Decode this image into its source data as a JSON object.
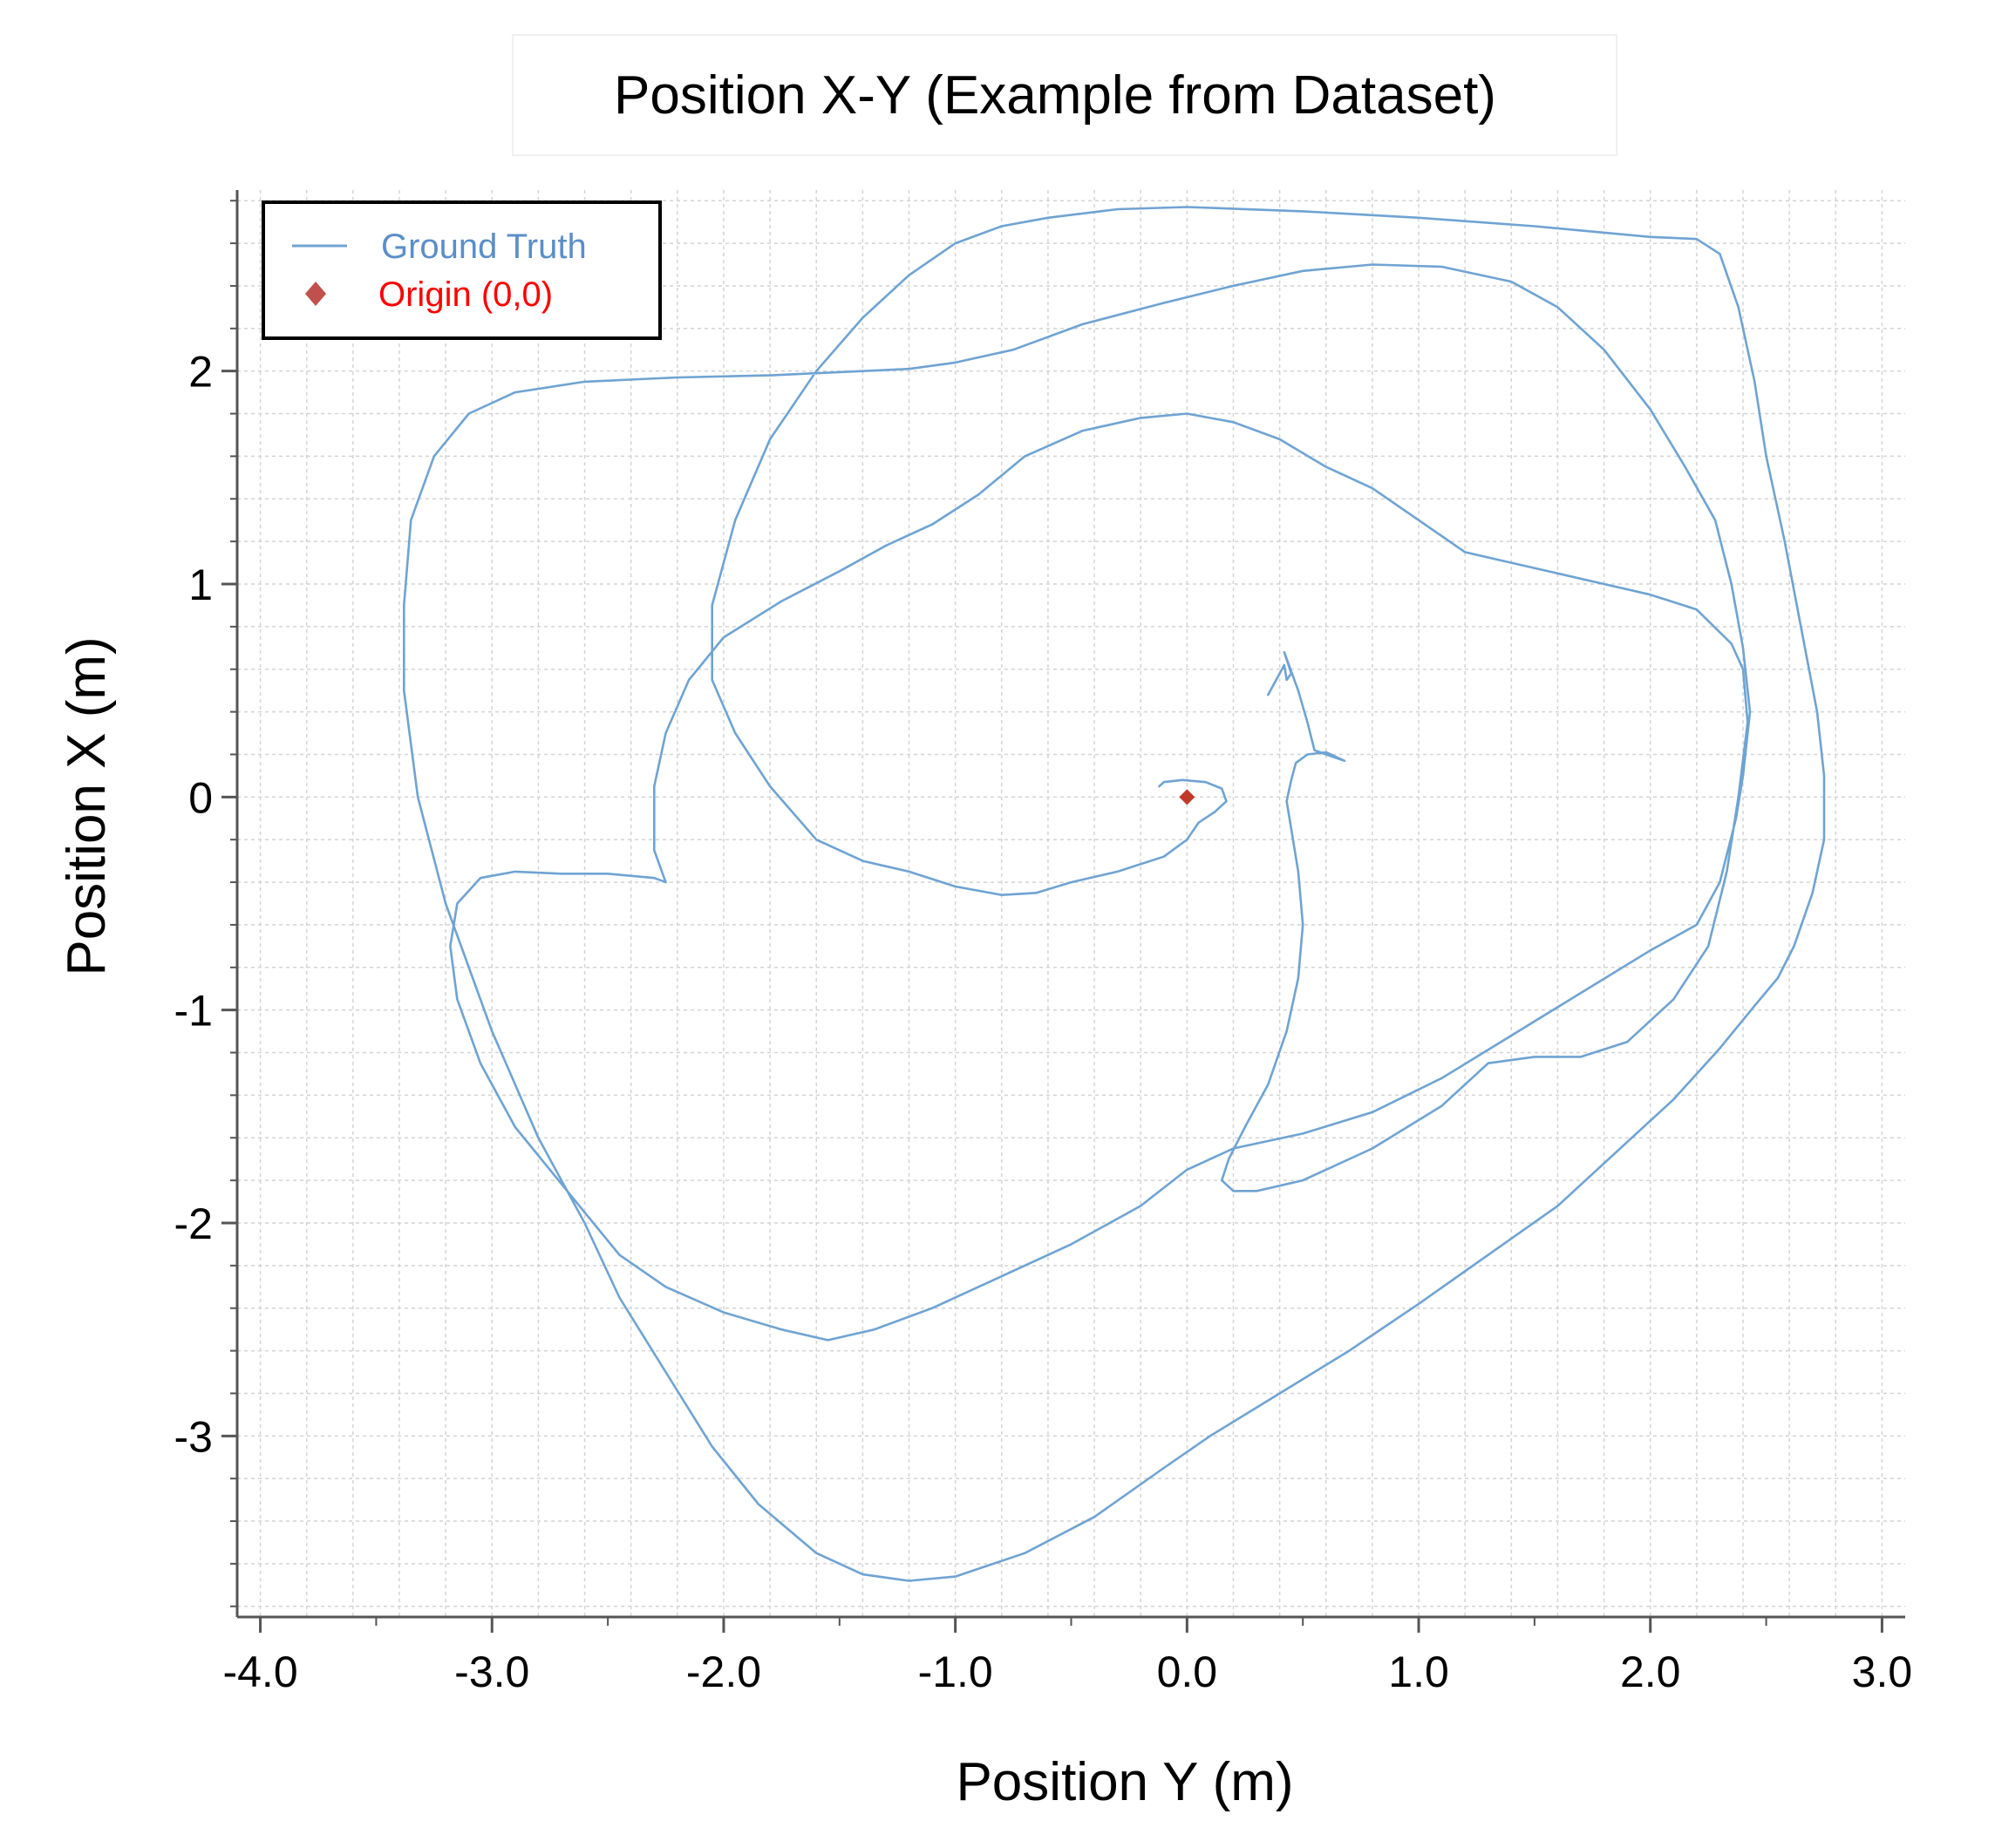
{
  "chart_data": {
    "type": "line",
    "title": "Position X-Y (Example from Dataset)",
    "xlabel": "Position Y (m)",
    "ylabel": "Position X (m)",
    "xlim": [
      -4.1,
      3.1
    ],
    "ylim": [
      -3.85,
      2.85
    ],
    "x_ticks": [
      -4.0,
      -3.0,
      -2.0,
      -1.0,
      0.0,
      1.0,
      2.0,
      3.0
    ],
    "x_tick_labels": [
      "-4.0",
      "-3.0",
      "-2.0",
      "-1.0",
      "0.0",
      "1.0",
      "2.0",
      "3.0"
    ],
    "y_ticks": [
      -3,
      -2,
      -1,
      0,
      1,
      2
    ],
    "y_tick_labels": [
      "-3",
      "-2",
      "-1",
      "0",
      "1",
      "2"
    ],
    "grid": true,
    "legend_position": "top-left",
    "colors": {
      "ground_truth": "#6fa3d2",
      "origin_marker": "#c0392b",
      "legend_ground_truth_text": "#5b8ec9",
      "legend_origin_text": "#ff0000",
      "legend_origin_marker": "#c0504d"
    },
    "series": [
      {
        "name": "Ground Truth",
        "points": [
          [
            0.35,
            0.48
          ],
          [
            0.4,
            0.58
          ],
          [
            0.42,
            0.62
          ],
          [
            0.43,
            0.55
          ],
          [
            0.45,
            0.58
          ],
          [
            0.42,
            0.68
          ],
          [
            0.48,
            0.5
          ],
          [
            0.52,
            0.35
          ],
          [
            0.55,
            0.22
          ],
          [
            0.6,
            0.2
          ],
          [
            0.68,
            0.17
          ],
          [
            0.6,
            0.21
          ],
          [
            0.52,
            0.2
          ],
          [
            0.47,
            0.16
          ],
          [
            0.45,
            0.08
          ],
          [
            0.43,
            -0.02
          ],
          [
            0.45,
            -0.15
          ],
          [
            0.48,
            -0.35
          ],
          [
            0.5,
            -0.6
          ],
          [
            0.48,
            -0.85
          ],
          [
            0.43,
            -1.1
          ],
          [
            0.35,
            -1.35
          ],
          [
            0.25,
            -1.55
          ],
          [
            0.18,
            -1.7
          ],
          [
            0.15,
            -1.8
          ],
          [
            0.2,
            -1.85
          ],
          [
            0.3,
            -1.85
          ],
          [
            0.5,
            -1.8
          ],
          [
            0.8,
            -1.65
          ],
          [
            1.1,
            -1.45
          ],
          [
            1.3,
            -1.25
          ],
          [
            1.5,
            -1.22
          ],
          [
            1.7,
            -1.22
          ],
          [
            1.9,
            -1.15
          ],
          [
            2.1,
            -0.95
          ],
          [
            2.25,
            -0.7
          ],
          [
            2.33,
            -0.35
          ],
          [
            2.38,
            0
          ],
          [
            2.42,
            0.35
          ],
          [
            2.4,
            0.6
          ],
          [
            2.35,
            0.72
          ],
          [
            2.2,
            0.88
          ],
          [
            2.0,
            0.95
          ],
          [
            1.8,
            1.0
          ],
          [
            1.6,
            1.05
          ],
          [
            1.4,
            1.1
          ],
          [
            1.2,
            1.15
          ],
          [
            1.0,
            1.3
          ],
          [
            0.8,
            1.45
          ],
          [
            0.6,
            1.55
          ],
          [
            0.4,
            1.68
          ],
          [
            0.2,
            1.76
          ],
          [
            0.0,
            1.8
          ],
          [
            -0.2,
            1.78
          ],
          [
            -0.45,
            1.72
          ],
          [
            -0.7,
            1.6
          ],
          [
            -0.9,
            1.42
          ],
          [
            -1.1,
            1.28
          ],
          [
            -1.3,
            1.18
          ],
          [
            -1.5,
            1.06
          ],
          [
            -1.75,
            0.92
          ],
          [
            -2.0,
            0.75
          ],
          [
            -2.15,
            0.55
          ],
          [
            -2.25,
            0.3
          ],
          [
            -2.3,
            0.05
          ],
          [
            -2.3,
            -0.25
          ],
          [
            -2.25,
            -0.4
          ],
          [
            -2.3,
            -0.38
          ],
          [
            -2.5,
            -0.36
          ],
          [
            -2.7,
            -0.36
          ],
          [
            -2.9,
            -0.35
          ],
          [
            -3.05,
            -0.38
          ],
          [
            -3.15,
            -0.5
          ],
          [
            -3.18,
            -0.7
          ],
          [
            -3.15,
            -0.95
          ],
          [
            -3.05,
            -1.25
          ],
          [
            -2.9,
            -1.55
          ],
          [
            -2.75,
            -1.75
          ],
          [
            -2.6,
            -1.95
          ],
          [
            -2.45,
            -2.15
          ],
          [
            -2.25,
            -2.3
          ],
          [
            -2.0,
            -2.42
          ],
          [
            -1.75,
            -2.5
          ],
          [
            -1.55,
            -2.55
          ],
          [
            -1.35,
            -2.5
          ],
          [
            -1.1,
            -2.4
          ],
          [
            -0.8,
            -2.25
          ],
          [
            -0.5,
            -2.1
          ],
          [
            -0.2,
            -1.92
          ],
          [
            0.0,
            -1.75
          ],
          [
            0.2,
            -1.65
          ],
          [
            0.5,
            -1.58
          ],
          [
            0.8,
            -1.48
          ],
          [
            1.1,
            -1.32
          ],
          [
            1.4,
            -1.12
          ],
          [
            1.7,
            -0.92
          ],
          [
            2.0,
            -0.72
          ],
          [
            2.2,
            -0.6
          ],
          [
            2.3,
            -0.4
          ],
          [
            2.37,
            -0.1
          ],
          [
            2.4,
            0.1
          ],
          [
            2.43,
            0.4
          ],
          [
            2.4,
            0.7
          ],
          [
            2.35,
            1.0
          ],
          [
            2.28,
            1.3
          ],
          [
            2.15,
            1.55
          ],
          [
            2.0,
            1.82
          ],
          [
            1.8,
            2.1
          ],
          [
            1.6,
            2.3
          ],
          [
            1.4,
            2.42
          ],
          [
            1.1,
            2.49
          ],
          [
            0.8,
            2.5
          ],
          [
            0.5,
            2.47
          ],
          [
            0.2,
            2.4
          ],
          [
            -0.1,
            2.32
          ],
          [
            -0.45,
            2.22
          ],
          [
            -0.75,
            2.1
          ],
          [
            -1.0,
            2.04
          ],
          [
            -1.2,
            2.01
          ],
          [
            -1.4,
            2.0
          ],
          [
            -1.8,
            1.98
          ],
          [
            -2.2,
            1.97
          ],
          [
            -2.6,
            1.95
          ],
          [
            -2.9,
            1.9
          ],
          [
            -3.1,
            1.8
          ],
          [
            -3.25,
            1.6
          ],
          [
            -3.35,
            1.3
          ],
          [
            -3.38,
            0.9
          ],
          [
            -3.38,
            0.5
          ],
          [
            -3.32,
            0
          ],
          [
            -3.2,
            -0.5
          ],
          [
            -3.0,
            -1.1
          ],
          [
            -2.8,
            -1.6
          ],
          [
            -2.6,
            -2.0
          ],
          [
            -2.45,
            -2.35
          ],
          [
            -2.25,
            -2.7
          ],
          [
            -2.05,
            -3.05
          ],
          [
            -1.85,
            -3.32
          ],
          [
            -1.6,
            -3.55
          ],
          [
            -1.4,
            -3.65
          ],
          [
            -1.2,
            -3.68
          ],
          [
            -1.0,
            -3.66
          ],
          [
            -0.7,
            -3.55
          ],
          [
            -0.4,
            -3.38
          ],
          [
            -0.1,
            -3.15
          ],
          [
            0.1,
            -3.0
          ],
          [
            0.4,
            -2.8
          ],
          [
            0.7,
            -2.6
          ],
          [
            1.0,
            -2.38
          ],
          [
            1.3,
            -2.15
          ],
          [
            1.6,
            -1.92
          ],
          [
            1.9,
            -1.62
          ],
          [
            2.1,
            -1.42
          ],
          [
            2.3,
            -1.18
          ],
          [
            2.45,
            -0.98
          ],
          [
            2.55,
            -0.85
          ],
          [
            2.62,
            -0.7
          ],
          [
            2.7,
            -0.45
          ],
          [
            2.75,
            -0.2
          ],
          [
            2.75,
            0.1
          ],
          [
            2.72,
            0.4
          ],
          [
            2.65,
            0.8
          ],
          [
            2.58,
            1.2
          ],
          [
            2.5,
            1.6
          ],
          [
            2.45,
            1.95
          ],
          [
            2.38,
            2.3
          ],
          [
            2.3,
            2.55
          ],
          [
            2.2,
            2.62
          ],
          [
            2.0,
            2.63
          ],
          [
            1.5,
            2.68
          ],
          [
            1.0,
            2.72
          ],
          [
            0.5,
            2.75
          ],
          [
            0.0,
            2.77
          ],
          [
            -0.3,
            2.76
          ],
          [
            -0.6,
            2.72
          ],
          [
            -0.8,
            2.68
          ],
          [
            -1.0,
            2.6
          ],
          [
            -1.2,
            2.45
          ],
          [
            -1.4,
            2.25
          ],
          [
            -1.6,
            2.0
          ],
          [
            -1.8,
            1.68
          ],
          [
            -1.95,
            1.3
          ],
          [
            -2.05,
            0.9
          ],
          [
            -2.05,
            0.55
          ],
          [
            -1.95,
            0.3
          ],
          [
            -1.8,
            0.05
          ],
          [
            -1.6,
            -0.2
          ],
          [
            -1.4,
            -0.3
          ],
          [
            -1.2,
            -0.35
          ],
          [
            -1.0,
            -0.42
          ],
          [
            -0.8,
            -0.46
          ],
          [
            -0.65,
            -0.45
          ],
          [
            -0.5,
            -0.4
          ],
          [
            -0.3,
            -0.35
          ],
          [
            -0.1,
            -0.28
          ],
          [
            0.0,
            -0.2
          ],
          [
            0.05,
            -0.12
          ],
          [
            0.12,
            -0.07
          ],
          [
            0.17,
            -0.02
          ],
          [
            0.15,
            0.04
          ],
          [
            0.08,
            0.07
          ],
          [
            -0.02,
            0.08
          ],
          [
            -0.1,
            0.07
          ],
          [
            -0.12,
            0.05
          ]
        ]
      },
      {
        "name": "Origin (0,0)",
        "marker": "diamond",
        "points": [
          [
            0,
            0
          ]
        ]
      }
    ]
  }
}
